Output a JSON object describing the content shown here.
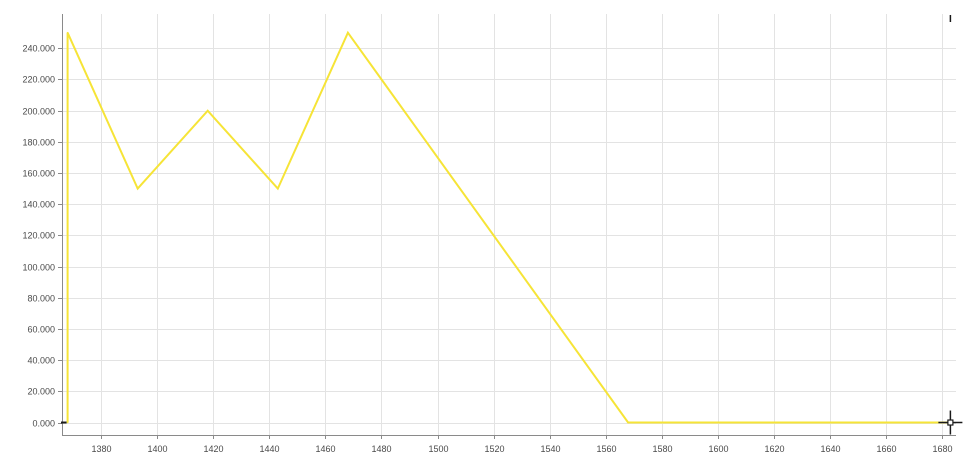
{
  "colors": {
    "background": "#ffffff",
    "grid": "#e3e3e3",
    "axis": "#8a8a8a",
    "series": "#f6e437",
    "cursor": "#1a1a1a"
  },
  "icons": {
    "cursor": "crosshair-cursor-icon"
  },
  "chart_data": {
    "type": "line",
    "title": "",
    "xlabel": "",
    "ylabel": "",
    "grid": true,
    "xlim": [
      1366,
      1685
    ],
    "ylim": [
      -8000,
      262000
    ],
    "x_ticks": [
      1380,
      1400,
      1420,
      1440,
      1460,
      1480,
      1500,
      1520,
      1540,
      1560,
      1580,
      1600,
      1620,
      1640,
      1660,
      1680
    ],
    "x_tick_labels": [
      "1380",
      "1400",
      "1420",
      "1440",
      "1460",
      "1480",
      "1500",
      "1520",
      "1540",
      "1560",
      "1580",
      "1600",
      "1620",
      "1640",
      "1660",
      "1680"
    ],
    "y_ticks": [
      0,
      20000,
      40000,
      60000,
      80000,
      100000,
      120000,
      140000,
      160000,
      180000,
      200000,
      220000,
      240000
    ],
    "y_tick_labels": [
      "0.000",
      "20.000",
      "40.000",
      "60.000",
      "80.000",
      "100.000",
      "120.000",
      "140.000",
      "160.000",
      "180.000",
      "200.000",
      "220.000",
      "240.000"
    ],
    "series": [
      {
        "x": [
          1368,
          1368,
          1393,
          1418,
          1443,
          1468,
          1568,
          1683
        ],
        "y": [
          0,
          250000,
          150000,
          200000,
          150000,
          250000,
          0,
          0
        ]
      }
    ]
  }
}
